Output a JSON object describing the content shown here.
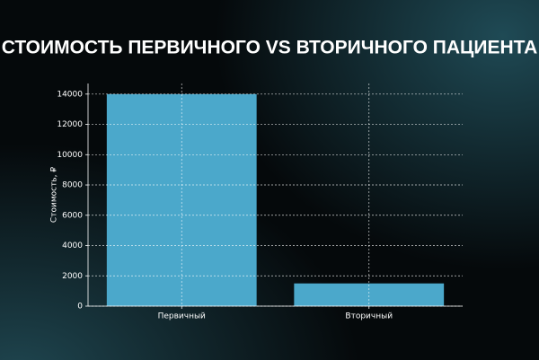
{
  "chart_data": {
    "type": "bar",
    "title": "СТОИМОСТЬ ПЕРВИЧНОГО VS ВТОРИЧНОГО ПАЦИЕНТА",
    "y_label": "Стоимость, ₽",
    "categories": [
      "Первичный",
      "Вторичный"
    ],
    "values": [
      14000,
      1500
    ],
    "color": "#4ba8cb",
    "ylim": [
      0,
      14700
    ],
    "yticks": [
      0,
      2000,
      4000,
      6000,
      8000,
      10000,
      12000,
      14000
    ],
    "grid": true
  }
}
